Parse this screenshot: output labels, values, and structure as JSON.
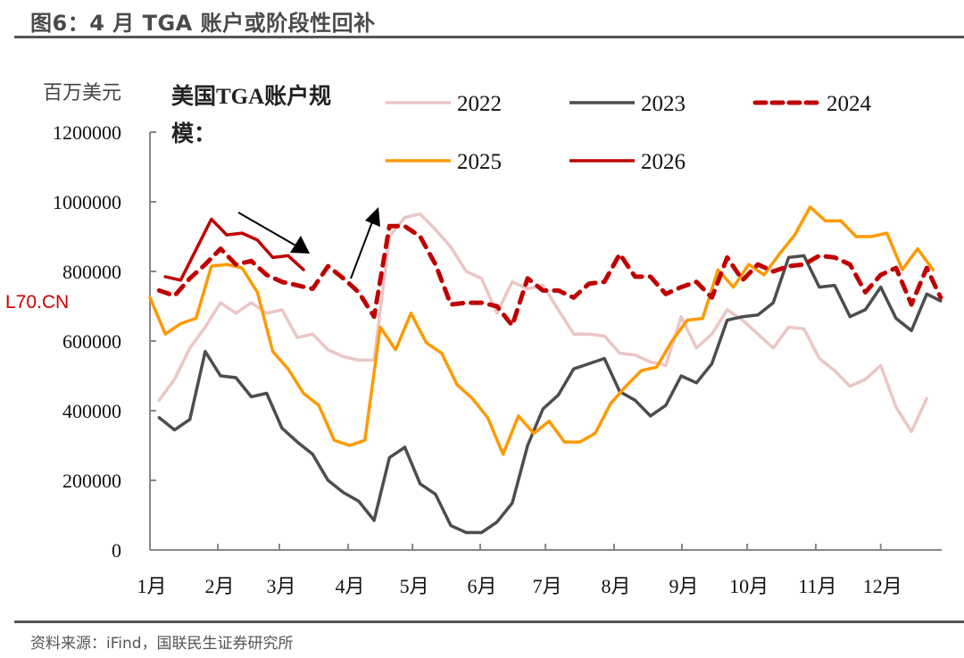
{
  "header": {
    "figure_title": "图6：4 月 TGA 账户或阶段性回补"
  },
  "footer": {
    "source": "资料来源：iFind，国联民生证券研究所"
  },
  "watermark": "L70.CN",
  "chart_data": {
    "type": "line",
    "title": "美国TGA账户规模：",
    "ylabel": "百万美元",
    "xlabel": "",
    "ylim": [
      0,
      1200000
    ],
    "xlim_weeks": [
      0,
      51.6
    ],
    "yticks": [
      "0",
      "200000",
      "400000",
      "600000",
      "800000",
      "1000000",
      "1200000"
    ],
    "ytick_values": [
      0,
      200000,
      400000,
      600000,
      800000,
      1000000,
      1200000
    ],
    "xticks": [
      "1月",
      "2月",
      "3月",
      "4月",
      "5月",
      "6月",
      "7月",
      "8月",
      "9月",
      "10月",
      "11月",
      "12月"
    ],
    "xtick_weeks": [
      0,
      4.42,
      8.43,
      12.91,
      17.1,
      21.51,
      25.76,
      30.23,
      34.65,
      38.9,
      43.37,
      47.6
    ],
    "grid": false,
    "legend_position": "top",
    "annotations": [
      {
        "type": "arrow",
        "direction": "down-right",
        "from": [
          5.7,
          1000000
        ],
        "to": [
          10.3,
          860000
        ]
      },
      {
        "type": "arrow",
        "direction": "up",
        "from": [
          13.1,
          770000
        ],
        "to": [
          14.9,
          980000
        ]
      }
    ],
    "series": [
      {
        "name": "2022",
        "color": "#ecc5c5",
        "dash": "solid",
        "x": [
          0.6,
          1.6,
          2.6,
          3.6,
          4.6,
          5.6,
          6.6,
          7.6,
          8.6,
          9.6,
          10.6,
          11.6,
          12.6,
          13.6,
          14.6,
          15.6,
          16.6,
          17.6,
          18.6,
          19.6,
          20.6,
          21.6,
          22.6,
          23.6,
          24.6,
          25.6,
          26.6,
          27.6,
          28.6,
          29.6,
          30.6,
          31.6,
          32.6,
          33.6,
          34.6,
          35.6,
          36.6,
          37.6,
          38.6,
          39.6,
          40.6,
          41.6,
          42.6,
          43.6,
          44.6,
          45.6,
          46.6,
          47.6,
          48.6,
          49.6,
          50.6
        ],
        "values": [
          430000,
          490000,
          580000,
          640000,
          710000,
          680000,
          710000,
          680000,
          690000,
          610000,
          620000,
          575000,
          555000,
          545000,
          545000,
          900000,
          955000,
          965000,
          920000,
          870000,
          800000,
          780000,
          680000,
          770000,
          750000,
          760000,
          690000,
          620000,
          620000,
          615000,
          565000,
          560000,
          540000,
          530000,
          670000,
          580000,
          620000,
          690000,
          660000,
          620000,
          580000,
          640000,
          635000,
          550000,
          515000,
          470000,
          490000,
          530000,
          410000,
          340000,
          435000
        ]
      },
      {
        "name": "2023",
        "color": "#4d4d4d",
        "dash": "solid",
        "x": [
          0.6,
          1.6,
          2.6,
          3.6,
          4.6,
          5.6,
          6.6,
          7.6,
          8.6,
          9.6,
          10.6,
          11.6,
          12.6,
          13.6,
          14.6,
          15.6,
          16.6,
          17.6,
          18.6,
          19.6,
          20.6,
          21.6,
          22.6,
          23.6,
          24.6,
          25.6,
          26.6,
          27.6,
          28.6,
          29.6,
          30.6,
          31.6,
          32.6,
          33.6,
          34.6,
          35.6,
          36.6,
          37.6,
          38.6,
          39.6,
          40.6,
          41.6,
          42.6,
          43.6,
          44.6,
          45.6,
          46.6,
          47.6,
          48.6,
          49.6,
          50.6,
          51.5
        ],
        "values": [
          380000,
          345000,
          375000,
          570000,
          500000,
          495000,
          440000,
          450000,
          350000,
          310000,
          275000,
          200000,
          165000,
          140000,
          85000,
          265000,
          295000,
          190000,
          160000,
          70000,
          50000,
          50000,
          80000,
          135000,
          300000,
          405000,
          445000,
          520000,
          535000,
          550000,
          455000,
          430000,
          385000,
          415000,
          500000,
          480000,
          535000,
          660000,
          670000,
          675000,
          710000,
          840000,
          845000,
          755000,
          760000,
          670000,
          690000,
          755000,
          665000,
          630000,
          735000,
          715000
        ]
      },
      {
        "name": "2024",
        "color": "#c00000",
        "dash": "dashed",
        "x": [
          0.6,
          1.6,
          2.6,
          3.6,
          4.6,
          5.6,
          6.6,
          7.6,
          8.6,
          9.6,
          10.6,
          11.6,
          12.6,
          13.6,
          14.6,
          15.6,
          16.6,
          17.6,
          18.6,
          19.6,
          20.6,
          21.6,
          22.6,
          23.6,
          24.6,
          25.6,
          26.6,
          27.6,
          28.6,
          29.6,
          30.6,
          31.6,
          32.6,
          33.6,
          34.6,
          35.6,
          36.6,
          37.6,
          38.6,
          39.6,
          40.6,
          41.6,
          42.6,
          43.6,
          44.6,
          45.6,
          46.6,
          47.6,
          48.6,
          49.6,
          50.6,
          51.5
        ],
        "values": [
          745000,
          730000,
          780000,
          820000,
          865000,
          820000,
          830000,
          790000,
          770000,
          760000,
          750000,
          815000,
          780000,
          740000,
          670000,
          930000,
          930000,
          900000,
          820000,
          705000,
          710000,
          710000,
          700000,
          645000,
          780000,
          745000,
          745000,
          725000,
          765000,
          770000,
          850000,
          785000,
          785000,
          735000,
          755000,
          770000,
          725000,
          840000,
          775000,
          820000,
          800000,
          815000,
          820000,
          845000,
          840000,
          820000,
          740000,
          790000,
          810000,
          705000,
          810000,
          725000
        ]
      },
      {
        "name": "2025",
        "color": "#ff9900",
        "dash": "solid",
        "x": [
          0,
          1,
          2,
          3,
          4,
          5,
          6,
          7,
          8,
          9,
          10,
          11,
          12,
          13,
          14,
          15,
          16,
          17,
          18,
          19,
          20,
          21,
          22,
          23,
          24,
          25,
          26,
          27,
          28,
          29,
          30,
          31,
          32,
          33,
          34,
          35,
          36,
          37,
          38,
          39,
          40,
          41,
          42,
          43,
          44,
          45,
          46,
          47,
          48,
          49,
          50,
          51
        ],
        "values": [
          725000,
          620000,
          650000,
          665000,
          815000,
          820000,
          810000,
          740000,
          570000,
          520000,
          450000,
          415000,
          315000,
          300000,
          315000,
          640000,
          575000,
          680000,
          595000,
          565000,
          475000,
          435000,
          380000,
          275000,
          385000,
          335000,
          370000,
          310000,
          310000,
          335000,
          420000,
          470000,
          515000,
          525000,
          600000,
          660000,
          665000,
          805000,
          755000,
          820000,
          790000,
          850000,
          905000,
          985000,
          945000,
          945000,
          900000,
          900000,
          910000,
          805000,
          865000,
          805000
        ]
      },
      {
        "name": "2026",
        "color": "#c00000",
        "dash": "solid",
        "x": [
          1,
          2,
          4,
          5,
          6,
          7,
          8,
          9,
          10
        ],
        "values": [
          785000,
          775000,
          950000,
          905000,
          910000,
          890000,
          840000,
          845000,
          805000
        ]
      }
    ]
  }
}
